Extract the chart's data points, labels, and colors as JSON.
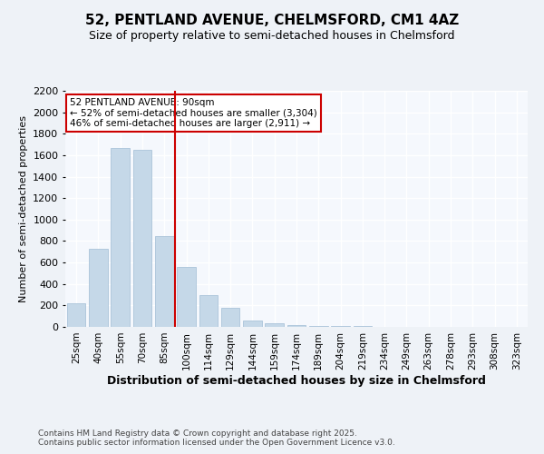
{
  "title": "52, PENTLAND AVENUE, CHELMSFORD, CM1 4AZ",
  "subtitle": "Size of property relative to semi-detached houses in Chelmsford",
  "xlabel": "Distribution of semi-detached houses by size in Chelmsford",
  "ylabel": "Number of semi-detached properties",
  "categories": [
    "25sqm",
    "40sqm",
    "55sqm",
    "70sqm",
    "85sqm",
    "100sqm",
    "114sqm",
    "129sqm",
    "144sqm",
    "159sqm",
    "174sqm",
    "189sqm",
    "204sqm",
    "219sqm",
    "234sqm",
    "249sqm",
    "263sqm",
    "278sqm",
    "293sqm",
    "308sqm",
    "323sqm"
  ],
  "values": [
    220,
    730,
    1670,
    1650,
    845,
    560,
    295,
    175,
    60,
    35,
    20,
    10,
    8,
    5,
    3,
    3,
    2,
    2,
    1,
    1,
    1
  ],
  "bar_color": "#c5d8e8",
  "bar_edge_color": "#a0bcd4",
  "property_line_x": 5,
  "property_value": "90sqm",
  "pct_smaller": 52,
  "pct_larger": 46,
  "count_smaller": 3304,
  "count_larger": 2911,
  "vline_color": "#cc0000",
  "annotation_box_color": "#cc0000",
  "ylim": [
    0,
    2200
  ],
  "yticks": [
    0,
    200,
    400,
    600,
    800,
    1000,
    1200,
    1400,
    1600,
    1800,
    2000,
    2200
  ],
  "bg_color": "#eef2f7",
  "plot_bg_color": "#f5f8fd",
  "grid_color": "#ffffff",
  "footer_line1": "Contains HM Land Registry data © Crown copyright and database right 2025.",
  "footer_line2": "Contains public sector information licensed under the Open Government Licence v3.0."
}
